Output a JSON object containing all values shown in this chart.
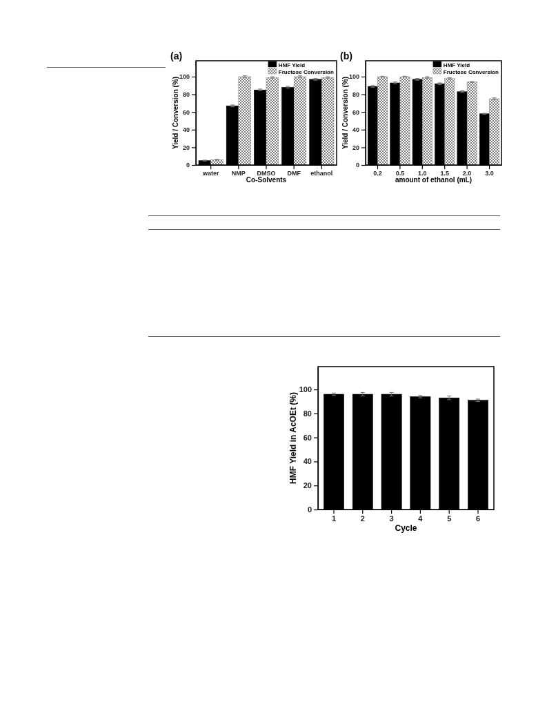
{
  "chart_data": [
    {
      "type": "bar",
      "title": "(a)",
      "xlabel": "Co-Solvents",
      "ylabel": "Yield / Conversion (%)",
      "categories": [
        "water",
        "NMP",
        "DMSO",
        "DMF",
        "ethanol"
      ],
      "ylim": [
        0,
        118
      ],
      "yticks": [
        0,
        20,
        40,
        60,
        80,
        100
      ],
      "legend": "top right",
      "series": [
        {
          "name": "HMF Yield",
          "color": "#000000",
          "values": [
            5,
            67,
            85,
            88,
            97
          ],
          "errors": [
            0.5,
            1,
            1,
            1,
            1
          ]
        },
        {
          "name": "Fructose Conversion",
          "color": "#808080",
          "values": [
            6,
            100,
            99,
            100,
            99
          ],
          "errors": [
            0.5,
            1,
            1,
            1,
            1
          ]
        }
      ]
    },
    {
      "type": "bar",
      "title": "(b)",
      "xlabel": "amount of ethanol (mL)",
      "ylabel": "Yield / Conversion (%)",
      "categories": [
        "0.2",
        "0.5",
        "1.0",
        "1.5",
        "2.0",
        "3.0"
      ],
      "ylim": [
        0,
        118
      ],
      "yticks": [
        0,
        20,
        40,
        60,
        80,
        100
      ],
      "legend": "top right",
      "series": [
        {
          "name": "HMF Yield",
          "color": "#000000",
          "values": [
            89,
            93,
            97,
            92,
            83,
            58
          ],
          "errors": [
            1,
            1,
            1,
            1,
            1,
            0.5
          ]
        },
        {
          "name": "Fructose Conversion",
          "color": "#808080",
          "values": [
            100,
            100,
            99,
            98,
            94,
            75
          ],
          "errors": [
            0.5,
            0.5,
            1,
            1,
            0.5,
            1
          ]
        }
      ]
    },
    {
      "type": "bar",
      "xlabel": "Cycle",
      "ylabel": "HMF Yield in AcOEt (%)",
      "categories": [
        "1",
        "2",
        "3",
        "4",
        "5",
        "6"
      ],
      "ylim": [
        0,
        119
      ],
      "yticks": [
        0,
        20,
        40,
        60,
        80,
        100
      ],
      "series": [
        {
          "color": "#000000",
          "values": [
            96,
            96,
            96,
            94,
            93,
            91
          ],
          "errors": [
            1,
            1.5,
            1.5,
            1,
            1.5,
            1
          ]
        }
      ]
    }
  ]
}
